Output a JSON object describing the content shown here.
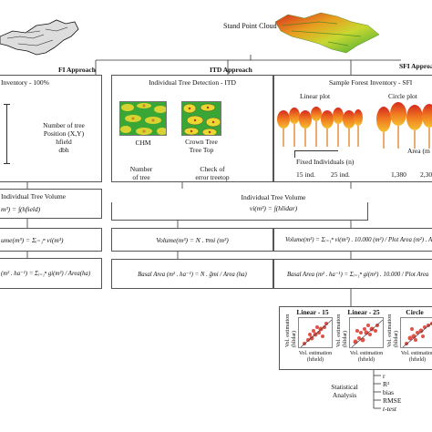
{
  "header": {
    "stand_point_cloud": "Stand Point Cloud"
  },
  "fi": {
    "approach": "FI Approach",
    "inventory": "Inventory - 100%",
    "tree_info": [
      "Number  of tree",
      "Position (X,Y)",
      "hfield",
      "dbh"
    ],
    "tree_volume_title": "Individual Tree Volume",
    "tree_volume_formula": "m³) = ∫(hfield)",
    "volume_formula": "ume(m³) = Σᵢ₌₁ⁿ vi(m³)",
    "basal_formula": "(m² . ha⁻¹) = Σᵢ₌₁ⁿ gi(m²) / Area(ha)"
  },
  "itd": {
    "approach": "ITD Approach",
    "title": "Individual Tree Detection - ITD",
    "chm": "CHM",
    "crown": [
      "Crown Tree",
      "Tree Top"
    ],
    "number_of_tree": [
      "Number",
      "of tree"
    ],
    "check": [
      "Check of",
      "error treetop"
    ],
    "tree_volume_title": "Individual Tree Volume",
    "tree_volume_formula": "vi(m³) = ∫(hlidar)",
    "volume_formula": "Volume(m³) = N . v̄mi  (m³)",
    "basal_formula": "Basal Area (m² . ha⁻¹) = N . ḡmi / Area (ha)"
  },
  "sfi": {
    "approach": "SFI Approa",
    "title": "Sample Forest Inventory - SFI",
    "linear_plot": "Linear plot",
    "circle_plot": "Circle plot",
    "fixed_individuals": "Fixed Individuals (n)",
    "ind15": "15 ind.",
    "ind25": "25 ind.",
    "area": "Area (m",
    "area1": "1,380",
    "area2": "2,30",
    "volume_formula": "Volume(m³) = Σᵢ₌₁ⁿ vi(m³) . 10.000 (m²) / Plot Area (m²) . Are",
    "basal_formula": "Basal Area (m² . ha⁻¹) = Σᵢ₌₁ⁿ gi(m²) . 10.000 / Plot Area"
  },
  "validation": {
    "panels": [
      "Linear - 15",
      "Linear - 25",
      "Circle"
    ],
    "ylabel": [
      "Vol. estimation",
      "(hlidar)"
    ],
    "xlabel": [
      "Vol. estimation",
      "(hfield)"
    ],
    "stat_title": [
      "Statistical",
      "Analysis"
    ],
    "stats": [
      "r",
      "R²",
      "bias",
      "RMSE",
      "t-test"
    ]
  },
  "colors": {
    "box_border": "#555555",
    "canopy_green": "#3aa635",
    "canopy_yellow": "#e8d830",
    "canopy_red": "#d62a1e"
  }
}
